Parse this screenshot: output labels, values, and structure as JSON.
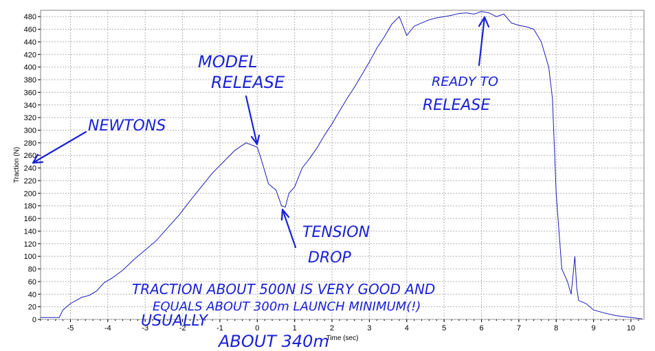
{
  "chart_data": {
    "type": "line",
    "xlabel": "Time (sec)",
    "ylabel": "Traction (N)",
    "xlim": [
      -5.8,
      10.35
    ],
    "ylim": [
      0,
      490
    ],
    "xticks": [
      -5,
      -4,
      -3,
      -2,
      -1,
      0,
      1,
      2,
      3,
      4,
      5,
      6,
      7,
      8,
      9,
      10
    ],
    "yticks": [
      0,
      20,
      40,
      60,
      80,
      100,
      120,
      140,
      160,
      180,
      200,
      220,
      240,
      260,
      280,
      300,
      320,
      340,
      360,
      380,
      400,
      420,
      440,
      460,
      480
    ],
    "grid": true,
    "series": [
      {
        "x": [
          -5.8,
          -5.3,
          -5.2,
          -5.0,
          -4.7,
          -4.5,
          -4.3,
          -4.1,
          -3.9,
          -3.6,
          -3.3,
          -3.0,
          -2.7,
          -2.4,
          -2.1,
          -1.8,
          -1.5,
          -1.2,
          -0.9,
          -0.6,
          -0.3,
          0.0,
          0.1,
          0.3,
          0.5,
          0.65,
          0.75,
          0.85,
          1.0,
          1.2,
          1.4,
          1.6,
          1.8,
          2.0,
          2.2,
          2.4,
          2.6,
          2.8,
          3.0,
          3.2,
          3.4,
          3.6,
          3.8,
          4.0,
          4.2,
          4.4,
          4.6,
          4.8,
          5.0,
          5.2,
          5.4,
          5.6,
          5.8,
          6.0,
          6.2,
          6.4,
          6.6,
          6.8,
          7.0,
          7.2,
          7.4,
          7.6,
          7.8,
          7.9,
          8.0,
          8.15,
          8.3,
          8.4,
          8.5,
          8.55,
          8.6,
          8.8,
          9.0,
          9.3,
          9.6,
          10.0,
          10.3
        ],
        "values": [
          3,
          3,
          15,
          25,
          35,
          38,
          45,
          58,
          65,
          78,
          95,
          110,
          125,
          145,
          165,
          188,
          210,
          232,
          250,
          268,
          280,
          273,
          255,
          215,
          205,
          180,
          178,
          200,
          210,
          240,
          255,
          272,
          292,
          310,
          330,
          350,
          368,
          388,
          408,
          430,
          448,
          468,
          480,
          450,
          465,
          470,
          475,
          478,
          480,
          482,
          485,
          486,
          484,
          488,
          486,
          480,
          484,
          470,
          466,
          464,
          460,
          440,
          400,
          350,
          200,
          80,
          60,
          40,
          100,
          50,
          30,
          25,
          15,
          10,
          6,
          3,
          1
        ]
      }
    ]
  },
  "annotations": {
    "newtons": "NEWTONS",
    "model_release_1": "MODEL",
    "model_release_2": "RELEASE",
    "ready_1": "READY TO",
    "ready_2": "RELEASE",
    "tension_1": "TENSION",
    "tension_2": "DROP",
    "note_1": "TRACTION ABOUT 500N IS VERY GOOD AND",
    "note_2": "EQUALS ABOUT 300m LAUNCH MINIMUM(!)",
    "note_3": "USUALLY",
    "note_4": "ABOUT 340m"
  }
}
